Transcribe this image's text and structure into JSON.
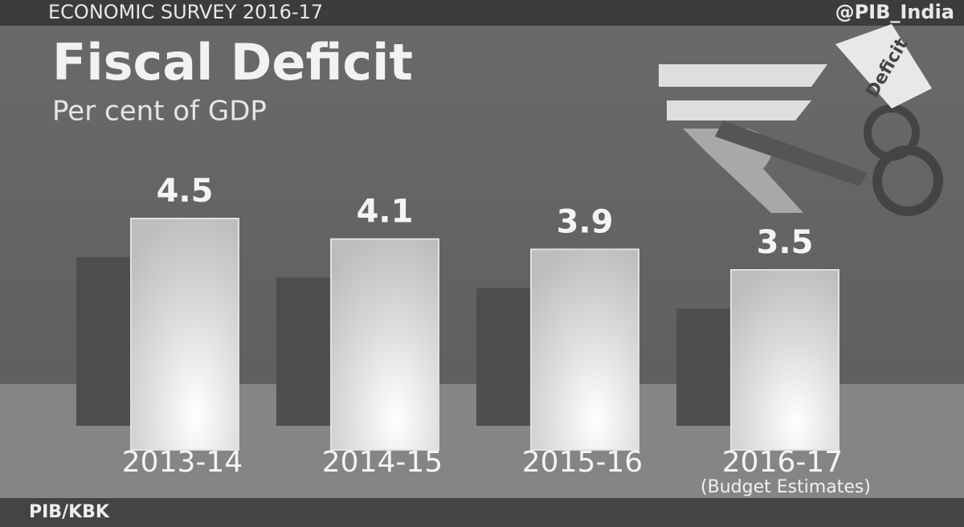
{
  "chart_data": {
    "type": "bar",
    "header": "ECONOMIC SURVEY 2016-17",
    "source": "@PIB_India",
    "title": "Fiscal Deficit",
    "subtitle": "Per cent of GDP",
    "categories": [
      "2013-14",
      "2014-15",
      "2015-16",
      "2016-17"
    ],
    "values": [
      4.5,
      4.1,
      3.9,
      3.5
    ],
    "note": "(Budget Estimates)",
    "credit": "PIB/KBK",
    "tag": "Deficit",
    "color": "#e0e0e0"
  }
}
